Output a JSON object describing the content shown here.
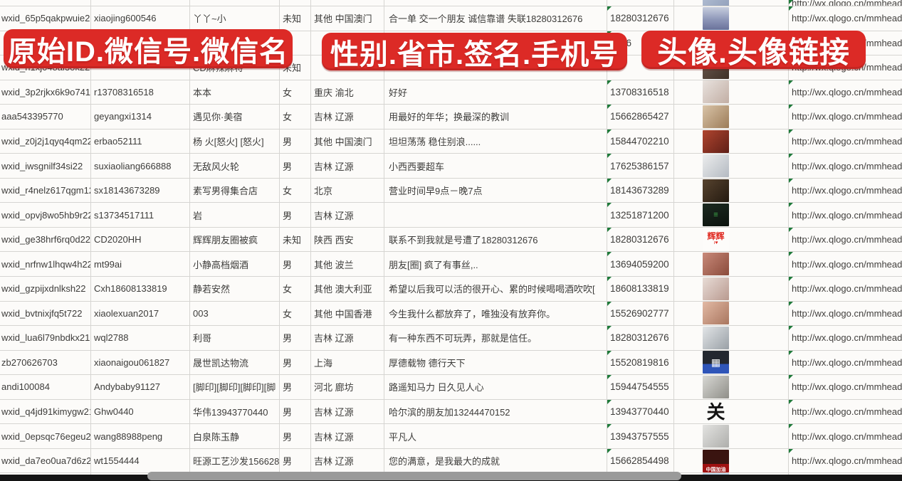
{
  "banners": [
    {
      "text": "原始ID.微信号.微信名"
    },
    {
      "text": "性别.省市.签名.手机号"
    },
    {
      "text": "头像.头像链接"
    }
  ],
  "colors": {
    "banner_red": "#dc2a26",
    "gridline": "#d6d5d2",
    "cell_text": "#3d3c3a",
    "flag_green": "#1f7a3a",
    "scrollbar_track": "#141414",
    "scrollbar_thumb": "#9a9a9a"
  },
  "rows": [
    {
      "partial": "top",
      "id": "",
      "account": "",
      "name": "",
      "gender": "",
      "region": "",
      "signature": "",
      "phone": "",
      "url": "http://wx.qlogo.cn/mmhead",
      "avatar": {
        "bg": "linear-gradient(135deg,#b4c0d4,#8d9cb8)"
      }
    },
    {
      "partial": "",
      "id": "wxid_65p5qakpwuie22",
      "account": "xiaojing600546",
      "name": "丫丫~小",
      "gender": "未知",
      "region": "其他 中国澳门",
      "signature": "合一单 交一个朋友 诚信靠谱 失联18280312676",
      "phone": "18280312676",
      "url": "http://wx.qlogo.cn/mmhead",
      "avatar": {
        "bg": "linear-gradient(180deg,#c7cede 0%,#8d96b8 55%,#6a729a 100%)"
      }
    },
    {
      "partial": "",
      "id": "",
      "account": "",
      "name": "",
      "gender": "",
      "region": "",
      "signature": "",
      "phone": "5386",
      "url": "http://wx.qlogo.cn/mmhead",
      "avatar": {
        "bg": "linear-gradient(180deg,#d7dde8,#aeb8cc)"
      }
    },
    {
      "partial": "",
      "id": "wxid_h1xj048al3ok22",
      "account": "",
      "name": "CD麻辣麻将",
      "gender": "未知",
      "region": "",
      "signature": "",
      "phone": "",
      "url": "http://wx.qlogo.cn/mmhead",
      "avatar": {
        "bg": "linear-gradient(135deg,#6b5a50,#3e3026)"
      }
    },
    {
      "partial": "",
      "id": "wxid_3p2rjkx6k9o741",
      "account": "r13708316518",
      "name": "本本",
      "gender": "女",
      "region": "重庆 渝北",
      "signature": "好好",
      "phone": "13708316518",
      "url": "http://wx.qlogo.cn/mmhead",
      "avatar": {
        "bg": "linear-gradient(135deg,#e8e2de,#c2aea4)"
      }
    },
    {
      "partial": "",
      "id": "aaa543395770",
      "account": "geyangxi1314",
      "name": "遇见你·美宿",
      "gender": "女",
      "region": "吉林 辽源",
      "signature": "用最好的年华；换最深的教训",
      "phone": "15662865427",
      "url": "http://wx.qlogo.cn/mmhead",
      "avatar": {
        "bg": "linear-gradient(135deg,#d9c4a8,#9c7b57)"
      }
    },
    {
      "partial": "",
      "id": "wxid_z0j2j1qyq4qm22",
      "account": "erbao52111",
      "name": "杨 火[怒火] [怒火]",
      "gender": "男",
      "region": "其他 中国澳门",
      "signature": "坦坦荡荡 稳住别浪......",
      "phone": "15844702210",
      "url": "http://wx.qlogo.cn/mmhead",
      "avatar": {
        "bg": "linear-gradient(135deg,#b0452f,#5f1f17)"
      }
    },
    {
      "partial": "",
      "id": "wxid_iwsgnilf34si22",
      "account": "suxiaoliang666888",
      "name": "无敌风火轮",
      "gender": "男",
      "region": "吉林 辽源",
      "signature": "小西西要超车",
      "phone": "17625386157",
      "url": "http://wx.qlogo.cn/mmhead",
      "avatar": {
        "bg": "linear-gradient(135deg,#eceded,#b4bac2)"
      }
    },
    {
      "partial": "",
      "id": "wxid_r4nelz617qgm12",
      "account": "sx18143673289",
      "name": "素写男得集合店",
      "gender": "女",
      "region": "北京",
      "signature": "营业时间早9点－晚7点",
      "phone": "18143673289",
      "url": "http://wx.qlogo.cn/mmhead",
      "avatar": {
        "bg": "linear-gradient(135deg,#57432f,#241a10)"
      }
    },
    {
      "partial": "",
      "id": "wxid_opvj8wo5hb9r22",
      "account": "s13734517111",
      "name": "岩",
      "gender": "男",
      "region": "吉林 辽源",
      "signature": "",
      "phone": "13251871200",
      "url": "http://wx.qlogo.cn/mmhead",
      "avatar": {
        "bg": "linear-gradient(160deg,#1c2a21,#0b120d)",
        "label": "≡",
        "label_color": "#3fae4a",
        "label_size": 11
      }
    },
    {
      "partial": "",
      "id": "wxid_ge38hrf6rq0d22",
      "account": "CD2020HH",
      "name": "辉辉朋友圈被疯",
      "gender": "未知",
      "region": "陕西 西安",
      "signature": "联系不到我就是号遭了18280312676",
      "phone": "18280312676",
      "url": "http://wx.qlogo.cn/mmhead",
      "avatar": {
        "bg": "#fdfcfa",
        "label": "辉辉",
        "label_color": "#e02a21",
        "label_size": 12,
        "sub": "ı♥",
        "sub_color": "#e02a21"
      }
    },
    {
      "partial": "",
      "id": "wxid_nrfnw1lhqw4h22",
      "account": "mt99ai",
      "name": "小静高档烟酒",
      "gender": "男",
      "region": "其他 波兰",
      "signature": "朋友[圈] 疯了有事丝,..",
      "phone": "13694059200",
      "url": "http://wx.qlogo.cn/mmhead",
      "avatar": {
        "bg": "linear-gradient(135deg,#c98a7a,#8a4a3a)"
      }
    },
    {
      "partial": "",
      "id": "wxid_gzpijxdnlksh22",
      "account": "Cxh18608133819",
      "name": "静若安然",
      "gender": "女",
      "region": "其他 澳大利亚",
      "signature": "希望以后我可以活的很开心、累的时候喝喝酒吹吹[",
      "phone": "18608133819",
      "url": "http://wx.qlogo.cn/mmhead",
      "avatar": {
        "bg": "linear-gradient(135deg,#e8dcd6,#b99a90)"
      }
    },
    {
      "partial": "",
      "id": "wxid_bvtnixjfq5t722",
      "account": "xiaolexuan2017",
      "name": "003",
      "gender": "女",
      "region": "其他 中国香港",
      "signature": "今生我什么都放弃了，唯独没有放弃你。",
      "phone": "15526902777",
      "url": "http://wx.qlogo.cn/mmhead",
      "avatar": {
        "bg": "linear-gradient(135deg,#e2b9a4,#a9765f)"
      }
    },
    {
      "partial": "",
      "id": "wxid_lua6l79nbdkx21",
      "account": "wql2788",
      "name": "利哥",
      "gender": "男",
      "region": "吉林 辽源",
      "signature": "有一种东西不可玩弄，那就是信任。",
      "phone": "18280312676",
      "url": "http://wx.qlogo.cn/mmhead",
      "avatar": {
        "bg": "linear-gradient(135deg,#e2e5e7,#99a0a6)"
      }
    },
    {
      "partial": "",
      "id": "zb270626703",
      "account": "xiaonaigou061827",
      "name": "晟世凯达物流",
      "gender": "男",
      "region": "上海",
      "signature": "厚德载物 德行天下",
      "phone": "15520819816",
      "url": "http://wx.qlogo.cn/mmhead",
      "avatar": {
        "bg": "linear-gradient(180deg,#23272f 0%,#23272f 58%,#2f55b8 58%,#2f55b8 100%)",
        "label": "▦",
        "label_color": "#ffffff",
        "label_size": 14
      }
    },
    {
      "partial": "",
      "id": "andi100084",
      "account": "Andybaby91127",
      "name": "[脚印][脚印][脚印][脚",
      "gender": "男",
      "region": "河北 廊坊",
      "signature": "路遥知马力 日久见人心",
      "phone": "15944754555",
      "url": "http://wx.qlogo.cn/mmhead",
      "avatar": {
        "bg": "linear-gradient(135deg,#d8d8d4,#8f8e88)"
      }
    },
    {
      "partial": "",
      "id": "wxid_q4jd91kimygw21",
      "account": "Ghw0440",
      "name": "华伟13943770440",
      "gender": "男",
      "region": "吉林 辽源",
      "signature": "哈尔滨的朋友加13244470152",
      "phone": "13943770440",
      "url": "http://wx.qlogo.cn/mmhead",
      "avatar": {
        "bg": "#fbfbf9",
        "label": "关",
        "label_color": "#141414",
        "label_size": 26
      }
    },
    {
      "partial": "",
      "id": "wxid_0epsqc76egeu22",
      "account": "wang88988peng",
      "name": "白泉陈玉静",
      "gender": "男",
      "region": "吉林 辽源",
      "signature": "平凡人",
      "phone": "13943757555",
      "url": "http://wx.qlogo.cn/mmhead",
      "avatar": {
        "bg": "linear-gradient(135deg,#e3e3e1,#aeaeab)"
      }
    },
    {
      "partial": "",
      "id": "wxid_da7eo0ua7d6z22",
      "account": "wt1554444",
      "name": "旺源工艺沙发15662854",
      "gender": "男",
      "region": "吉林 辽源",
      "signature": "您的满意，是我最大的成就",
      "phone": "15662854498",
      "url": "http://wx.qlogo.cn/mmhead",
      "avatar": {
        "bg": "linear-gradient(180deg,#3a1410 0%,#3a1410 62%,#a01212 62%,#a01212 100%)",
        "label": "中国加油",
        "label_color": "#ffffff",
        "label_size": 7,
        "label_pos": "bottom"
      }
    },
    {
      "partial": "bottom",
      "id": "",
      "account": "",
      "name": "",
      "gender": "",
      "region": "",
      "signature": "",
      "phone": "",
      "url": "",
      "avatar": {
        "bg": "linear-gradient(180deg,#cfe0ee,#9db6cc)"
      }
    }
  ]
}
